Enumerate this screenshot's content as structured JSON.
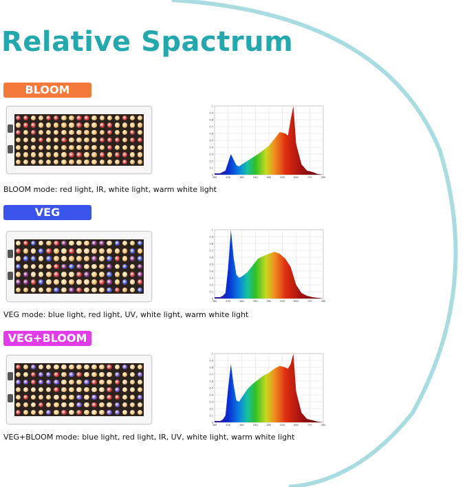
{
  "title": "Relative Spactrum",
  "accent_color": "#24a7ad",
  "modes": [
    {
      "badge": "BLOOM",
      "badge_color": "#f47a3c",
      "caption": "BLOOM mode: red light, IR, white light, warm white light"
    },
    {
      "badge": "VEG",
      "badge_color": "#3b55ec",
      "caption": "VEG mode: blue light, red light, UV, white light, warm white light"
    },
    {
      "badge": "VEG+BLOOM",
      "badge_color": "#e23ce9",
      "caption": "VEG+BLOOM mode: blue light, red light, IR, UV, white light, warm white light"
    }
  ],
  "chart_data": [
    {
      "type": "area",
      "x": [
        380,
        400,
        420,
        440,
        450,
        460,
        470,
        480,
        500,
        520,
        540,
        560,
        580,
        600,
        620,
        640,
        650,
        660,
        670,
        680,
        700,
        720,
        740,
        760,
        780
      ],
      "values": [
        0.02,
        0.02,
        0.06,
        0.3,
        0.22,
        0.14,
        0.12,
        0.15,
        0.2,
        0.25,
        0.3,
        0.36,
        0.42,
        0.52,
        0.62,
        0.6,
        0.57,
        0.8,
        1.0,
        0.45,
        0.15,
        0.06,
        0.04,
        0.01,
        0.0
      ],
      "xticks": [
        "380",
        "430",
        "480",
        "530",
        "580",
        "630",
        "680",
        "730",
        "780"
      ],
      "yticks": [
        "0",
        "0.1",
        "0.2",
        "0.3",
        "0.4",
        "0.5",
        "0.6",
        "0.7",
        "0.8",
        "0.9",
        "1"
      ],
      "xlim": [
        380,
        780
      ],
      "ylim": [
        0,
        1
      ],
      "grid": true
    },
    {
      "type": "area",
      "x": [
        380,
        400,
        410,
        420,
        430,
        440,
        450,
        460,
        470,
        480,
        500,
        520,
        540,
        560,
        580,
        600,
        620,
        640,
        660,
        680,
        700,
        720,
        740,
        760,
        780
      ],
      "values": [
        0.02,
        0.02,
        0.04,
        0.08,
        0.45,
        1.0,
        0.6,
        0.35,
        0.3,
        0.32,
        0.38,
        0.48,
        0.58,
        0.62,
        0.65,
        0.68,
        0.65,
        0.58,
        0.46,
        0.2,
        0.08,
        0.04,
        0.02,
        0.01,
        0.0
      ],
      "xticks": [
        "380",
        "430",
        "480",
        "530",
        "580",
        "630",
        "680",
        "730",
        "780"
      ],
      "yticks": [
        "0",
        "0.1",
        "0.2",
        "0.3",
        "0.4",
        "0.5",
        "0.6",
        "0.7",
        "0.8",
        "0.9",
        "1"
      ],
      "xlim": [
        380,
        780
      ],
      "ylim": [
        0,
        1
      ],
      "grid": true
    },
    {
      "type": "area",
      "x": [
        380,
        400,
        410,
        420,
        430,
        440,
        450,
        460,
        470,
        480,
        500,
        520,
        540,
        560,
        580,
        600,
        620,
        640,
        650,
        660,
        670,
        680,
        700,
        720,
        740,
        760,
        780
      ],
      "values": [
        0.02,
        0.02,
        0.04,
        0.1,
        0.5,
        0.85,
        0.55,
        0.32,
        0.3,
        0.36,
        0.48,
        0.56,
        0.62,
        0.68,
        0.72,
        0.78,
        0.82,
        0.8,
        0.78,
        0.85,
        1.0,
        0.45,
        0.14,
        0.05,
        0.03,
        0.01,
        0.0
      ],
      "xticks": [
        "380",
        "430",
        "480",
        "530",
        "580",
        "630",
        "680",
        "730",
        "780"
      ],
      "yticks": [
        "0",
        "0.1",
        "0.2",
        "0.3",
        "0.4",
        "0.5",
        "0.6",
        "0.7",
        "0.8",
        "0.9",
        "1"
      ],
      "xlim": [
        380,
        780
      ],
      "ylim": [
        0,
        1
      ],
      "grid": true
    }
  ]
}
